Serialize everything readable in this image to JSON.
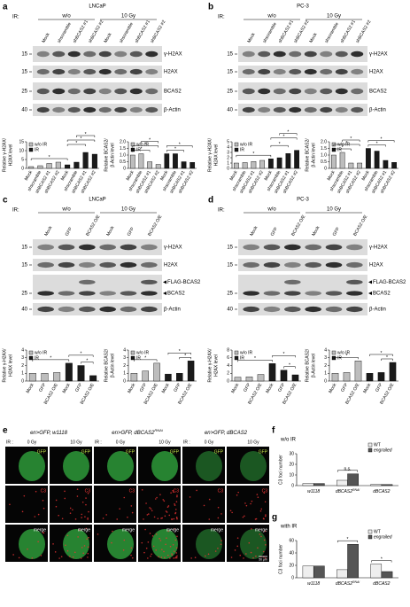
{
  "panels": {
    "a": {
      "label": "a",
      "ir": "IR:",
      "groups": [
        "w/o",
        "10 Gy"
      ],
      "cell_line": "LNCaP",
      "lanes": [
        "Mock",
        "shscramble",
        "shBCAS2 #1",
        "shBCAS2 #2",
        "Mock",
        "shscramble",
        "shBCAS2 #1",
        "shBCAS2 #2"
      ],
      "rows": [
        {
          "mw": 15,
          "proteins": [
            "γ-H2AX"
          ]
        },
        {
          "mw": 15,
          "proteins": [
            "H2AX"
          ]
        },
        {
          "mw": 25,
          "proteins": [
            "BCAS2"
          ]
        },
        {
          "mw": 40,
          "proteins": [
            "β-Actin"
          ]
        }
      ]
    },
    "b": {
      "label": "b",
      "ir": "IR:",
      "groups": [
        "w/o",
        "10 Gy"
      ],
      "cell_line": "PC-3",
      "lanes": [
        "Mock",
        "shscramble",
        "shBCAS2 #1",
        "shBCAS2 #2",
        "Mock",
        "shscramble",
        "shBCAS2 #1",
        "shBCAS2 #2"
      ],
      "rows": [
        {
          "mw": 15,
          "proteins": [
            "γ-H2AX"
          ]
        },
        {
          "mw": 15,
          "proteins": [
            "H2AX"
          ]
        },
        {
          "mw": 25,
          "proteins": [
            "BCAS2"
          ]
        },
        {
          "mw": 40,
          "proteins": [
            "β-Actin"
          ]
        }
      ]
    },
    "c": {
      "label": "c",
      "ir": "IR:",
      "groups": [
        "w/o",
        "10 Gy"
      ],
      "cell_line": "LNCaP",
      "lanes": [
        "Mock",
        "GFP",
        "BCAS2 O/E",
        "Mock",
        "GFP",
        "BCAS2 O/E"
      ],
      "rows": [
        {
          "mw": 15,
          "proteins": [
            "γ-H2AX"
          ]
        },
        {
          "mw": 15,
          "proteins": [
            "H2AX"
          ]
        },
        {
          "mw": 25,
          "proteins": [
            "FLAG-BCAS2",
            "BCAS2"
          ]
        },
        {
          "mw": 40,
          "proteins": [
            "β-Actin"
          ]
        }
      ]
    },
    "d": {
      "label": "d",
      "ir": "IR:",
      "groups": [
        "w/o",
        "10 Gy"
      ],
      "cell_line": "PC-3",
      "lanes": [
        "Mock",
        "GFP",
        "BCAS2 O/E",
        "Mock",
        "GFP",
        "BCAS2 O/E"
      ],
      "rows": [
        {
          "mw": 15,
          "proteins": [
            "γ-H2AX"
          ]
        },
        {
          "mw": 15,
          "proteins": [
            "H2AX"
          ]
        },
        {
          "mw": 25,
          "proteins": [
            "FLAG-BCAS2",
            "BCAS2"
          ]
        },
        {
          "mw": 40,
          "proteins": [
            "β-Actin"
          ]
        }
      ]
    },
    "e": {
      "label": "e",
      "ir": "IR :",
      "doses": [
        "0 Gy",
        "10 Gy"
      ],
      "genotypes": [
        {
          "text": "en>GFP, w1118"
        },
        {
          "text": "en>GFP, dBCAS2",
          "sup": "RNAi"
        },
        {
          "text": "en>GFP, dBCAS2"
        }
      ],
      "channels": [
        "GFP",
        "C3",
        "merge"
      ],
      "scale": "50 μm"
    }
  },
  "chart_data": [
    {
      "type": "bar",
      "y_label": [
        "Relative γ-H2AX/",
        "H2AX level"
      ],
      "categories": [
        "Mock",
        "shscramble",
        "shBCAS2 #1",
        "shBCAS2 #2",
        "Mock",
        "shscramble",
        "shBCAS2 #1",
        "shBCAS2 #2"
      ],
      "series": [
        {
          "name": "w/o IR",
          "color": "#bdbdbd",
          "values": [
            1,
            1.5,
            2.8,
            3.5,
            null,
            null,
            null,
            null
          ]
        },
        {
          "name": "IR",
          "color": "#1a1a1a",
          "values": [
            null,
            null,
            null,
            null,
            2,
            3.5,
            9,
            8
          ]
        }
      ],
      "ylim": [
        0,
        15
      ],
      "yticks": [
        0,
        5,
        10,
        15
      ],
      "legend": "top-left",
      "annotations": [
        "*",
        "*",
        "*",
        "*"
      ]
    },
    {
      "type": "bar",
      "y_label": [
        "Relative BCAS2/",
        "β-Actin level"
      ],
      "categories": [
        "Mock",
        "shscramble",
        "shBCAS2 #1",
        "shBCAS2 #2",
        "Mock",
        "shscramble",
        "shBCAS2 #1",
        "shBCAS2 #2"
      ],
      "series": [
        {
          "name": "w/o IR",
          "color": "#bdbdbd",
          "values": [
            1,
            1.1,
            0.5,
            0.3,
            null,
            null,
            null,
            null
          ]
        },
        {
          "name": "IR",
          "color": "#1a1a1a",
          "values": [
            null,
            null,
            null,
            null,
            1.1,
            1.1,
            0.5,
            0.45
          ]
        }
      ],
      "ylim": [
        0,
        2
      ],
      "yticks": [
        0,
        0.5,
        {
          "value": 1,
          "label": "1.0"
        },
        1.5,
        {
          "value": 2,
          "label": "2.0"
        }
      ],
      "legend": "top-left",
      "annotations": [
        "*",
        "*",
        "*",
        "*",
        "*"
      ]
    },
    {
      "type": "bar",
      "y_label": [
        "Relative γ-H2AX/",
        "H2AX level"
      ],
      "categories": [
        "Mock",
        "shscramble",
        "shBCAS2 #1",
        "shBCAS2 #2",
        "Mock",
        "shscramble",
        "shBCAS2 #1",
        "shBCAS2 #2"
      ],
      "series": [
        {
          "name": "w/o IR",
          "color": "#bdbdbd",
          "values": [
            1,
            1.1,
            1.3,
            1.5,
            null,
            null,
            null,
            null
          ]
        },
        {
          "name": "IR",
          "color": "#1a1a1a",
          "values": [
            null,
            null,
            null,
            null,
            1.8,
            2,
            2.8,
            3.4
          ]
        }
      ],
      "ylim": [
        0,
        5
      ],
      "yticks": [
        0,
        1,
        2,
        3,
        4,
        5
      ],
      "legend": "top-left",
      "annotations": [
        "*",
        "*",
        "*",
        "*"
      ]
    },
    {
      "type": "bar",
      "y_label": [
        "Relative BCAS2/",
        "β-Actin level"
      ],
      "categories": [
        "Mock",
        "shscramble",
        "shBCAS2 #1",
        "shBCAS2 #2",
        "Mock",
        "shscramble",
        "shBCAS2 #1",
        "shBCAS2 #2"
      ],
      "series": [
        {
          "name": "w/o IR",
          "color": "#bdbdbd",
          "values": [
            1,
            1.2,
            0.4,
            0.4,
            null,
            null,
            null,
            null
          ]
        },
        {
          "name": "IR",
          "color": "#1a1a1a",
          "values": [
            null,
            null,
            null,
            null,
            1.5,
            1.3,
            0.6,
            0.45
          ]
        }
      ],
      "ylim": [
        0,
        2
      ],
      "yticks": [
        0,
        0.5,
        {
          "value": 1,
          "label": "1.0"
        },
        1.5,
        {
          "value": 2,
          "label": "2.0"
        }
      ],
      "legend": "top-left",
      "annotations": [
        "*",
        "*",
        "*",
        "*",
        "*"
      ]
    },
    {
      "type": "bar",
      "y_label": [
        "Relative γ-H2AX/",
        "H2AX level"
      ],
      "categories": [
        "Mock",
        "GFP",
        "BCAS2 O/E",
        "Mock",
        "GFP",
        "BCAS2 O/E"
      ],
      "series": [
        {
          "name": "w/o IR",
          "color": "#bdbdbd",
          "values": [
            1,
            1,
            1.1,
            null,
            null,
            null
          ]
        },
        {
          "name": "IR",
          "color": "#1a1a1a",
          "values": [
            null,
            null,
            null,
            2.3,
            2,
            0.7
          ]
        }
      ],
      "ylim": [
        0,
        4
      ],
      "yticks": [
        0,
        1,
        2,
        3,
        4
      ],
      "legend": "top-left",
      "annotations": [
        "*",
        "*",
        "*"
      ]
    },
    {
      "type": "bar",
      "y_label": [
        "Relative BCAS2/",
        "β-Actin level"
      ],
      "categories": [
        "Mock",
        "GFP",
        "BCAS2 O/E",
        "Mock",
        "GFP",
        "BCAS2 O/E"
      ],
      "series": [
        {
          "name": "w/o IR",
          "color": "#bdbdbd",
          "values": [
            1,
            1.3,
            2.3,
            null,
            null,
            null
          ]
        },
        {
          "name": "IR",
          "color": "#1a1a1a",
          "values": [
            null,
            null,
            null,
            0.9,
            1,
            2.6
          ]
        }
      ],
      "ylim": [
        0,
        4
      ],
      "yticks": [
        0,
        1,
        2,
        3,
        4
      ],
      "legend": "top-left",
      "annotations": [
        "*",
        "*",
        "*"
      ]
    },
    {
      "type": "bar",
      "y_label": [
        "Relative γ-H2AX/",
        "H2AX level"
      ],
      "categories": [
        "Mock",
        "GFP",
        "BCAS2 O/E",
        "Mock",
        "GFP",
        "BCAS2 O/E"
      ],
      "series": [
        {
          "name": "w/o IR",
          "color": "#bdbdbd",
          "values": [
            1,
            1.1,
            1.7,
            null,
            null,
            null
          ]
        },
        {
          "name": "IR",
          "color": "#1a1a1a",
          "values": [
            null,
            null,
            null,
            4.5,
            2.8,
            1.6
          ]
        }
      ],
      "ylim": [
        0,
        8
      ],
      "yticks": [
        0,
        2,
        4,
        6,
        8
      ],
      "legend": "top-left",
      "annotations": [
        "*",
        "*",
        "*"
      ]
    },
    {
      "type": "bar",
      "y_label": [
        "Relative BCAS2/",
        "β-Actin level"
      ],
      "categories": [
        "Mock",
        "GFP",
        "BCAS2 O/E",
        "Mock",
        "GFP",
        "BCAS2 O/E"
      ],
      "series": [
        {
          "name": "w/o IR",
          "color": "#bdbdbd",
          "values": [
            1,
            1.1,
            2.6,
            null,
            null,
            null
          ]
        },
        {
          "name": "IR",
          "color": "#1a1a1a",
          "values": [
            null,
            null,
            null,
            1,
            1.1,
            2.4
          ]
        }
      ],
      "ylim": [
        0,
        4
      ],
      "yticks": [
        0,
        1,
        2,
        3,
        4
      ],
      "legend": "top-left",
      "annotations": [
        "*",
        "*",
        "*"
      ]
    },
    {
      "type": "bar",
      "label": "f",
      "title": "w/o IR",
      "y_label": [
        "C3 foci number"
      ],
      "categories": [
        "w1118",
        "dBCAS2",
        "dBCAS2"
      ],
      "category_superscripts": [
        null,
        "RNAi",
        null
      ],
      "series": [
        {
          "name": "WT",
          "color": "#eeeeee",
          "values": [
            2,
            5,
            1
          ]
        },
        {
          "name": "engrailed",
          "color": "#555555",
          "values": [
            2,
            11,
            1
          ]
        }
      ],
      "ylim": [
        0,
        30
      ],
      "yticks": [
        0,
        10,
        20,
        30
      ],
      "legend": "top-right",
      "annotations": [
        "n.s."
      ]
    },
    {
      "type": "bar",
      "label": "g",
      "title": "with IR",
      "y_label": [
        "C3 foci number"
      ],
      "categories": [
        "w1118",
        "dBCAS2",
        "dBCAS2"
      ],
      "category_superscripts": [
        null,
        "RNAi",
        null
      ],
      "series": [
        {
          "name": "WT",
          "color": "#eeeeee",
          "values": [
            19,
            13,
            22
          ]
        },
        {
          "name": "engrailed",
          "color": "#555555",
          "values": [
            19,
            54,
            10
          ]
        }
      ],
      "ylim": [
        0,
        60
      ],
      "yticks": [
        0,
        20,
        40,
        60
      ],
      "legend": "top-right",
      "annotations": [
        "*",
        "*"
      ]
    }
  ]
}
